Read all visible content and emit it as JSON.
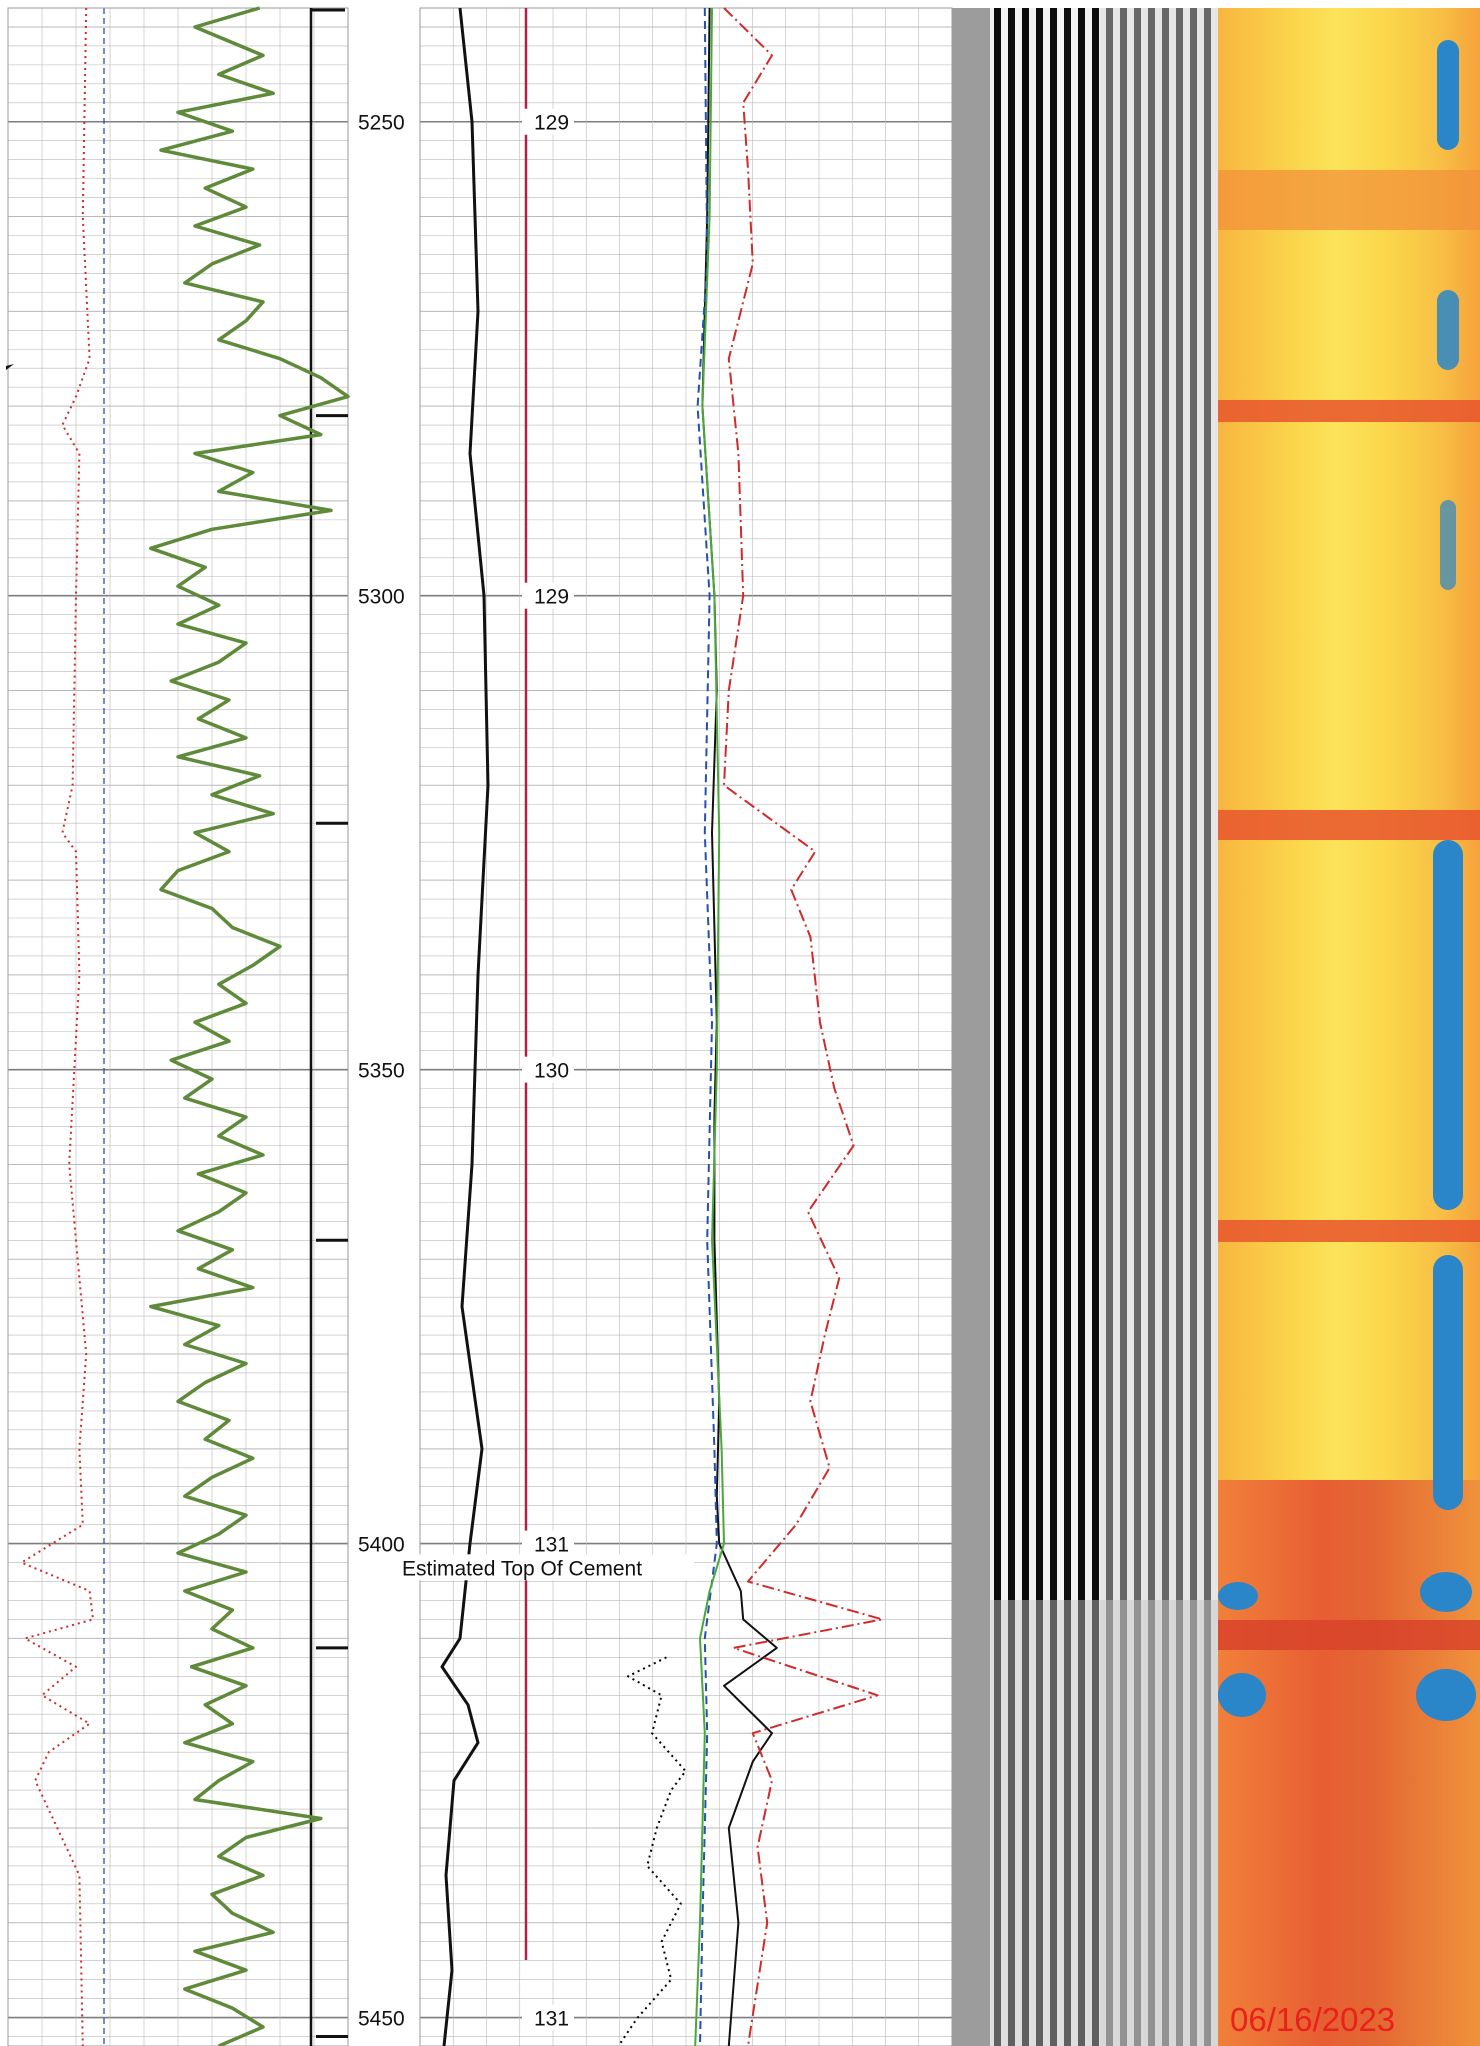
{
  "chart_data": {
    "type": "line",
    "title": "",
    "depth_axis": {
      "range": [
        5238,
        5453
      ],
      "ticks": [
        5250,
        5300,
        5350,
        5400,
        5450
      ],
      "tick_labels": [
        "5250",
        "5300",
        "5350",
        "5400",
        "5450"
      ]
    },
    "temperature_labels": [
      {
        "depth": 5250,
        "text": "129"
      },
      {
        "depth": 5300,
        "text": "129"
      },
      {
        "depth": 5350,
        "text": "130"
      },
      {
        "depth": 5400,
        "text": "131"
      },
      {
        "depth": 5450,
        "text": "131"
      }
    ],
    "annotations": [
      {
        "depth": 5402.5,
        "text": "Estimated Top Of Cement"
      }
    ],
    "collar_depths": [
      5281,
      5324,
      5368,
      5411,
      5452
    ],
    "series": [
      {
        "track": "left",
        "color": "#5e8a3a",
        "style": "solid",
        "points": [
          [
            5238,
            0.74
          ],
          [
            5240,
            0.55
          ],
          [
            5243,
            0.75
          ],
          [
            5245,
            0.62
          ],
          [
            5247,
            0.78
          ],
          [
            5249,
            0.5
          ],
          [
            5251,
            0.66
          ],
          [
            5253,
            0.45
          ],
          [
            5255,
            0.72
          ],
          [
            5257,
            0.58
          ],
          [
            5259,
            0.7
          ],
          [
            5261,
            0.55
          ],
          [
            5263,
            0.74
          ],
          [
            5265,
            0.6
          ],
          [
            5267,
            0.52
          ],
          [
            5269,
            0.75
          ],
          [
            5271,
            0.7
          ],
          [
            5273,
            0.62
          ],
          [
            5275,
            0.8
          ],
          [
            5277,
            0.92
          ],
          [
            5279,
            1.0
          ],
          [
            5281,
            0.8
          ],
          [
            5283,
            0.92
          ],
          [
            5285,
            0.55
          ],
          [
            5287,
            0.72
          ],
          [
            5289,
            0.62
          ],
          [
            5291,
            0.95
          ],
          [
            5293,
            0.6
          ],
          [
            5295,
            0.42
          ],
          [
            5297,
            0.58
          ],
          [
            5299,
            0.5
          ],
          [
            5301,
            0.62
          ],
          [
            5303,
            0.5
          ],
          [
            5305,
            0.7
          ],
          [
            5307,
            0.62
          ],
          [
            5309,
            0.48
          ],
          [
            5311,
            0.65
          ],
          [
            5313,
            0.56
          ],
          [
            5315,
            0.7
          ],
          [
            5317,
            0.5
          ],
          [
            5319,
            0.74
          ],
          [
            5321,
            0.6
          ],
          [
            5323,
            0.78
          ],
          [
            5325,
            0.55
          ],
          [
            5327,
            0.65
          ],
          [
            5329,
            0.5
          ],
          [
            5331,
            0.45
          ],
          [
            5333,
            0.6
          ],
          [
            5335,
            0.66
          ],
          [
            5337,
            0.8
          ],
          [
            5339,
            0.72
          ],
          [
            5341,
            0.62
          ],
          [
            5343,
            0.7
          ],
          [
            5345,
            0.55
          ],
          [
            5347,
            0.65
          ],
          [
            5349,
            0.48
          ],
          [
            5351,
            0.6
          ],
          [
            5353,
            0.52
          ],
          [
            5355,
            0.7
          ],
          [
            5357,
            0.62
          ],
          [
            5359,
            0.75
          ],
          [
            5361,
            0.56
          ],
          [
            5363,
            0.7
          ],
          [
            5365,
            0.62
          ],
          [
            5367,
            0.5
          ],
          [
            5369,
            0.66
          ],
          [
            5371,
            0.56
          ],
          [
            5373,
            0.72
          ],
          [
            5375,
            0.42
          ],
          [
            5377,
            0.62
          ],
          [
            5379,
            0.52
          ],
          [
            5381,
            0.7
          ],
          [
            5383,
            0.58
          ],
          [
            5385,
            0.5
          ],
          [
            5387,
            0.65
          ],
          [
            5389,
            0.58
          ],
          [
            5391,
            0.72
          ],
          [
            5393,
            0.6
          ],
          [
            5395,
            0.52
          ],
          [
            5397,
            0.7
          ],
          [
            5399,
            0.62
          ],
          [
            5401,
            0.5
          ],
          [
            5403,
            0.7
          ],
          [
            5405,
            0.52
          ],
          [
            5407,
            0.66
          ],
          [
            5409,
            0.6
          ],
          [
            5411,
            0.72
          ],
          [
            5413,
            0.54
          ],
          [
            5415,
            0.7
          ],
          [
            5417,
            0.58
          ],
          [
            5419,
            0.66
          ],
          [
            5421,
            0.52
          ],
          [
            5423,
            0.72
          ],
          [
            5425,
            0.62
          ],
          [
            5427,
            0.55
          ],
          [
            5429,
            0.92
          ],
          [
            5431,
            0.7
          ],
          [
            5433,
            0.62
          ],
          [
            5435,
            0.75
          ],
          [
            5437,
            0.6
          ],
          [
            5439,
            0.66
          ],
          [
            5441,
            0.78
          ],
          [
            5443,
            0.55
          ],
          [
            5445,
            0.7
          ],
          [
            5447,
            0.52
          ],
          [
            5449,
            0.66
          ],
          [
            5451,
            0.75
          ],
          [
            5453,
            0.62
          ]
        ]
      },
      {
        "track": "left",
        "color": "#d02a2a",
        "style": "dotted",
        "points": [
          [
            5238,
            0.23
          ],
          [
            5260,
            0.22
          ],
          [
            5275,
            0.24
          ],
          [
            5279,
            0.2
          ],
          [
            5282,
            0.16
          ],
          [
            5285,
            0.21
          ],
          [
            5300,
            0.2
          ],
          [
            5320,
            0.19
          ],
          [
            5325,
            0.16
          ],
          [
            5327,
            0.2
          ],
          [
            5340,
            0.21
          ],
          [
            5360,
            0.18
          ],
          [
            5380,
            0.23
          ],
          [
            5390,
            0.21
          ],
          [
            5398,
            0.22
          ],
          [
            5402,
            0.04
          ],
          [
            5405,
            0.24
          ],
          [
            5408,
            0.25
          ],
          [
            5410,
            0.05
          ],
          [
            5413,
            0.2
          ],
          [
            5416,
            0.1
          ],
          [
            5419,
            0.24
          ],
          [
            5422,
            0.12
          ],
          [
            5425,
            0.08
          ],
          [
            5435,
            0.21
          ],
          [
            5453,
            0.22
          ]
        ]
      },
      {
        "track": "right",
        "color": "#111111",
        "style": "solid",
        "points": [
          [
            5238,
            0.04
          ],
          [
            5260,
            0.03
          ],
          [
            5280,
            0.01
          ],
          [
            5300,
            0.06
          ],
          [
            5310,
            0.07
          ],
          [
            5325,
            0.05
          ],
          [
            5345,
            0.07
          ],
          [
            5355,
            0.06
          ],
          [
            5368,
            0.06
          ],
          [
            5385,
            0.08
          ],
          [
            5395,
            0.07
          ],
          [
            5400,
            0.08
          ],
          [
            5405,
            0.17
          ],
          [
            5408,
            0.18
          ],
          [
            5411,
            0.32
          ],
          [
            5415,
            0.1
          ],
          [
            5420,
            0.3
          ],
          [
            5423,
            0.22
          ],
          [
            5430,
            0.12
          ],
          [
            5440,
            0.16
          ],
          [
            5453,
            0.12
          ]
        ]
      },
      {
        "track": "right",
        "color": "#d02a2a",
        "style": "dashdot",
        "points": [
          [
            5238,
            0.1
          ],
          [
            5243,
            0.3
          ],
          [
            5248,
            0.18
          ],
          [
            5255,
            0.2
          ],
          [
            5265,
            0.22
          ],
          [
            5275,
            0.12
          ],
          [
            5285,
            0.16
          ],
          [
            5300,
            0.18
          ],
          [
            5310,
            0.12
          ],
          [
            5320,
            0.1
          ],
          [
            5327,
            0.48
          ],
          [
            5331,
            0.38
          ],
          [
            5336,
            0.46
          ],
          [
            5345,
            0.5
          ],
          [
            5352,
            0.56
          ],
          [
            5358,
            0.64
          ],
          [
            5365,
            0.45
          ],
          [
            5372,
            0.58
          ],
          [
            5378,
            0.52
          ],
          [
            5385,
            0.46
          ],
          [
            5392,
            0.54
          ],
          [
            5398,
            0.4
          ],
          [
            5404,
            0.2
          ],
          [
            5408,
            0.76
          ],
          [
            5411,
            0.14
          ],
          [
            5416,
            0.74
          ],
          [
            5420,
            0.22
          ],
          [
            5425,
            0.3
          ],
          [
            5432,
            0.24
          ],
          [
            5440,
            0.28
          ],
          [
            5453,
            0.2
          ]
        ]
      },
      {
        "track": "right",
        "color": "#000000",
        "style": "dotted",
        "points": [
          [
            5412,
            -0.14
          ],
          [
            5414,
            -0.3
          ],
          [
            5416,
            -0.16
          ],
          [
            5420,
            -0.2
          ],
          [
            5424,
            -0.06
          ],
          [
            5426,
            -0.12
          ],
          [
            5430,
            -0.18
          ],
          [
            5434,
            -0.22
          ],
          [
            5438,
            -0.08
          ],
          [
            5442,
            -0.16
          ],
          [
            5446,
            -0.12
          ],
          [
            5450,
            -0.26
          ],
          [
            5453,
            -0.34
          ]
        ]
      },
      {
        "track": "right",
        "color": "#2450b0",
        "style": "dashed",
        "points": [
          [
            5238,
            0.02
          ],
          [
            5265,
            0.03
          ],
          [
            5280,
            -0.01
          ],
          [
            5300,
            0.04
          ],
          [
            5325,
            0.02
          ],
          [
            5345,
            0.05
          ],
          [
            5368,
            0.03
          ],
          [
            5390,
            0.06
          ],
          [
            5400,
            0.07
          ],
          [
            5410,
            0.02
          ],
          [
            5420,
            0.03
          ],
          [
            5440,
            0.01
          ],
          [
            5453,
            0.0
          ]
        ]
      },
      {
        "track": "right",
        "color": "#4aa83a",
        "style": "solid",
        "points": [
          [
            5238,
            0.05
          ],
          [
            5260,
            0.04
          ],
          [
            5280,
            0.01
          ],
          [
            5300,
            0.06
          ],
          [
            5325,
            0.08
          ],
          [
            5350,
            0.07
          ],
          [
            5368,
            0.05
          ],
          [
            5390,
            0.09
          ],
          [
            5400,
            0.1
          ],
          [
            5405,
            0.04
          ],
          [
            5410,
            0.0
          ],
          [
            5420,
            0.02
          ],
          [
            5440,
            0.0
          ],
          [
            5453,
            -0.02
          ]
        ]
      }
    ]
  },
  "colors": {
    "grid": "#b9b9b9",
    "grid_major": "#7d7d7d",
    "temperature_line": "#b0204a",
    "stamp": "#e8211b"
  },
  "stamp": {
    "date": "06/16/2023"
  }
}
